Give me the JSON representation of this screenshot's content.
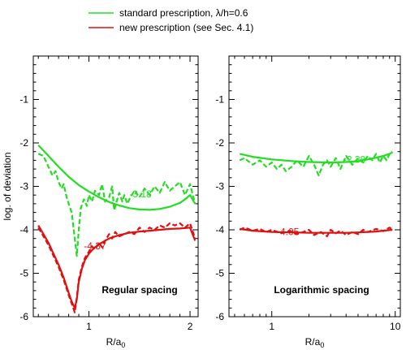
{
  "legend": [
    {
      "label": "standard prescription, λ/h=0.6",
      "color": "#22dd22"
    },
    {
      "label": "new prescription (see Sec. 4.1)",
      "color": "#dd1111"
    }
  ],
  "chart_data": [
    {
      "type": "line",
      "title": "Regular spacing",
      "xlabel": "R/a₀",
      "ylabel": "log. of deviation",
      "xscale": "linear",
      "xlim": [
        0.45,
        2.08
      ],
      "ylim": [
        -6,
        0
      ],
      "x_ticks": [
        1,
        2
      ],
      "x_tick_labels": [
        "1",
        "2"
      ],
      "y_ticks": [
        -6,
        -5,
        -4,
        -3,
        -2,
        -1
      ],
      "y_tick_labels": [
        "-6",
        "-5",
        "-4",
        "-3",
        "-2",
        "-1"
      ],
      "annotations": [
        {
          "text": "-3.18",
          "x": 1.4,
          "y": -3.18,
          "color": "#22dd22"
        },
        {
          "text": "-4.37",
          "x": 0.95,
          "y": -4.37,
          "color": "#dd1111"
        }
      ],
      "series": [
        {
          "style": "solid",
          "color": "#22dd22",
          "x": [
            0.5,
            0.6,
            0.7,
            0.8,
            0.9,
            1.0,
            1.1,
            1.2,
            1.3,
            1.4,
            1.5,
            1.6,
            1.7,
            1.8,
            1.9,
            1.95,
            2.0,
            2.05
          ],
          "y": [
            -2.05,
            -2.3,
            -2.55,
            -2.78,
            -2.97,
            -3.12,
            -3.25,
            -3.36,
            -3.44,
            -3.5,
            -3.53,
            -3.54,
            -3.52,
            -3.47,
            -3.38,
            -3.3,
            -3.2,
            -3.4
          ]
        },
        {
          "style": "dashed",
          "color": "#22dd22",
          "x": [
            0.5,
            0.55,
            0.6,
            0.64,
            0.67,
            0.7,
            0.73,
            0.75,
            0.78,
            0.8,
            0.83,
            0.86,
            0.88,
            0.9,
            0.92,
            0.95,
            0.98,
            1.0,
            1.03,
            1.06,
            1.1,
            1.13,
            1.16,
            1.2,
            1.23,
            1.25,
            1.28,
            1.3,
            1.33,
            1.35,
            1.38,
            1.4,
            1.45,
            1.5,
            1.55,
            1.6,
            1.65,
            1.7,
            1.75,
            1.8,
            1.85,
            1.9,
            1.95,
            2.0,
            2.05
          ],
          "y": [
            -2.25,
            -2.3,
            -2.55,
            -2.75,
            -2.65,
            -2.9,
            -3.05,
            -2.95,
            -3.25,
            -3.4,
            -3.6,
            -4.2,
            -4.6,
            -4.0,
            -3.5,
            -3.3,
            -3.45,
            -3.2,
            -3.35,
            -3.1,
            -3.2,
            -2.95,
            -3.35,
            -3.25,
            -3.0,
            -3.55,
            -3.3,
            -3.15,
            -3.35,
            -3.2,
            -3.4,
            -3.3,
            -3.1,
            -3.25,
            -3.05,
            -3.2,
            -3.0,
            -3.15,
            -2.9,
            -3.1,
            -3.0,
            -2.9,
            -3.2,
            -2.95,
            -3.4
          ]
        },
        {
          "style": "solid",
          "color": "#dd1111",
          "x": [
            0.5,
            0.55,
            0.6,
            0.65,
            0.7,
            0.75,
            0.8,
            0.83,
            0.86,
            0.88,
            0.9,
            0.93,
            0.96,
            1.0,
            1.05,
            1.1,
            1.2,
            1.3,
            1.4,
            1.5,
            1.6,
            1.7,
            1.8,
            1.9,
            2.0,
            2.05
          ],
          "y": [
            -3.9,
            -4.1,
            -4.3,
            -4.55,
            -4.8,
            -5.1,
            -5.45,
            -5.65,
            -5.8,
            -5.6,
            -5.2,
            -4.9,
            -4.7,
            -4.55,
            -4.42,
            -4.33,
            -4.2,
            -4.12,
            -4.07,
            -4.04,
            -4.02,
            -4.0,
            -3.98,
            -3.97,
            -3.95,
            -4.25
          ]
        },
        {
          "style": "dashed",
          "color": "#dd1111",
          "x": [
            0.5,
            0.55,
            0.6,
            0.65,
            0.7,
            0.75,
            0.8,
            0.83,
            0.86,
            0.88,
            0.9,
            0.93,
            0.96,
            1.0,
            1.03,
            1.06,
            1.1,
            1.13,
            1.16,
            1.2,
            1.23,
            1.26,
            1.3,
            1.35,
            1.4,
            1.45,
            1.5,
            1.55,
            1.6,
            1.65,
            1.7,
            1.75,
            1.8,
            1.85,
            1.9,
            1.95,
            2.0,
            2.05
          ],
          "y": [
            -3.95,
            -4.15,
            -4.35,
            -4.6,
            -4.85,
            -5.15,
            -5.5,
            -5.7,
            -5.9,
            -5.55,
            -5.15,
            -4.85,
            -4.65,
            -4.5,
            -4.38,
            -4.45,
            -4.3,
            -4.4,
            -4.25,
            -4.1,
            -4.2,
            -4.05,
            -4.15,
            -4.1,
            -4.05,
            -4.1,
            -3.95,
            -4.05,
            -3.95,
            -4.0,
            -3.9,
            -3.95,
            -3.85,
            -3.9,
            -3.85,
            -3.95,
            -3.85,
            -4.2
          ]
        }
      ]
    },
    {
      "type": "line",
      "title": "Logarithmic spacing",
      "xlabel": "R/a₀",
      "ylabel": "",
      "xscale": "log",
      "xlim": [
        0.45,
        11.0
      ],
      "ylim": [
        -6,
        0
      ],
      "x_ticks": [
        1,
        10
      ],
      "x_tick_labels": [
        "1",
        "10"
      ],
      "y_ticks": [
        -6,
        -5,
        -4,
        -3,
        -2,
        -1
      ],
      "y_tick_labels": [
        "-6",
        "-5",
        "-4",
        "-3",
        "-2",
        "-1"
      ],
      "annotations": [
        {
          "text": "-2.38",
          "x": 3.8,
          "y": -2.38,
          "color": "#22dd22"
        },
        {
          "text": "-4.05",
          "x": 1.1,
          "y": -4.05,
          "color": "#dd1111"
        }
      ],
      "series": [
        {
          "style": "solid",
          "color": "#22dd22",
          "x": [
            0.55,
            0.7,
            1.0,
            1.5,
            2.0,
            3.0,
            4.0,
            5.0,
            6.0,
            7.0,
            8.0,
            9.0,
            9.5
          ],
          "y": [
            -2.25,
            -2.32,
            -2.38,
            -2.42,
            -2.44,
            -2.45,
            -2.44,
            -2.42,
            -2.38,
            -2.34,
            -2.3,
            -2.25,
            -2.22
          ]
        },
        {
          "style": "dashed",
          "color": "#22dd22",
          "x": [
            0.55,
            0.6,
            0.7,
            0.8,
            0.9,
            1.0,
            1.1,
            1.2,
            1.3,
            1.45,
            1.6,
            1.8,
            2.0,
            2.2,
            2.4,
            2.6,
            2.8,
            3.0,
            3.3,
            3.6,
            4.0,
            4.5,
            5.0,
            5.5,
            6.0,
            6.5,
            7.0,
            7.5,
            8.0,
            8.5,
            9.0,
            9.5
          ],
          "y": [
            -2.4,
            -2.35,
            -2.5,
            -2.4,
            -2.55,
            -2.45,
            -2.6,
            -2.5,
            -2.65,
            -2.55,
            -2.4,
            -2.55,
            -2.3,
            -2.5,
            -2.75,
            -2.5,
            -2.4,
            -2.55,
            -2.35,
            -2.6,
            -2.3,
            -2.5,
            -2.35,
            -2.45,
            -2.3,
            -2.4,
            -2.25,
            -2.45,
            -2.3,
            -2.4,
            -2.25,
            -2.2
          ]
        },
        {
          "style": "solid",
          "color": "#dd1111",
          "x": [
            0.55,
            0.7,
            1.0,
            1.5,
            2.0,
            3.0,
            4.0,
            5.0,
            6.0,
            7.0,
            8.0,
            9.5
          ],
          "y": [
            -3.98,
            -4.02,
            -4.05,
            -4.06,
            -4.07,
            -4.07,
            -4.07,
            -4.06,
            -4.05,
            -4.04,
            -4.02,
            -4.0
          ]
        },
        {
          "style": "dashed",
          "color": "#dd1111",
          "x": [
            0.55,
            0.6,
            0.7,
            0.8,
            0.9,
            1.0,
            1.2,
            1.4,
            1.6,
            1.8,
            2.0,
            2.2,
            2.5,
            2.8,
            3.0,
            3.3,
            3.6,
            4.0,
            4.5,
            5.0,
            5.5,
            6.0,
            7.0,
            8.0,
            9.0,
            9.5
          ],
          "y": [
            -4.0,
            -3.95,
            -4.02,
            -3.98,
            -4.05,
            -4.0,
            -4.08,
            -4.02,
            -4.1,
            -4.05,
            -4.0,
            -4.12,
            -4.05,
            -4.15,
            -4.0,
            -4.08,
            -4.02,
            -4.12,
            -4.05,
            -4.1,
            -4.0,
            -4.05,
            -3.98,
            -4.03,
            -3.95,
            -4.0
          ]
        }
      ]
    }
  ]
}
